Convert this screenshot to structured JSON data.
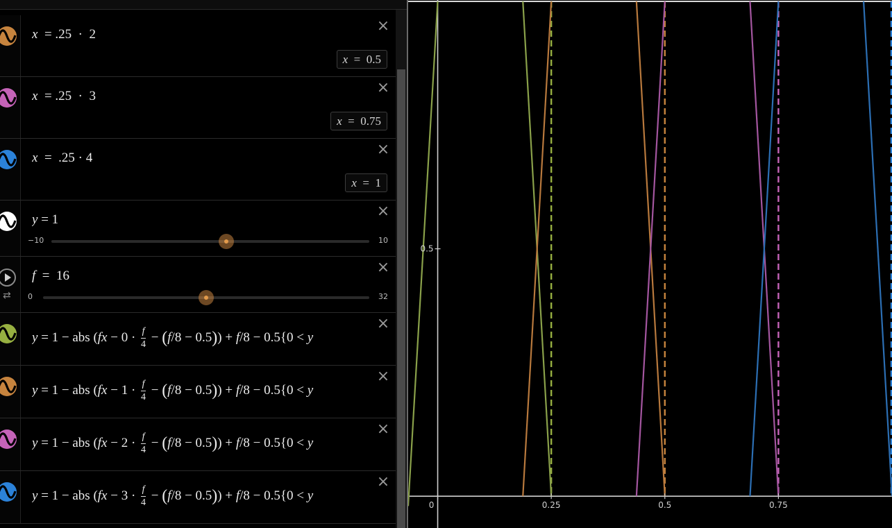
{
  "expressions": [
    {
      "id": "e1",
      "color": "#c7843e",
      "icon": "wave-icon",
      "math_html": "<i>x</i> &nbsp;= .25 &nbsp;· &nbsp;2",
      "result_html": "<i>x</i> &nbsp;= &nbsp;0.5"
    },
    {
      "id": "e2",
      "color": "#c563b8",
      "icon": "wave-icon",
      "math_html": "<i>x</i> &nbsp;= .25 &nbsp;· &nbsp;3",
      "result_html": "<i>x</i> &nbsp;= &nbsp;0.75"
    },
    {
      "id": "e3",
      "color": "#2b82d9",
      "icon": "wave-icon",
      "math_html": "<i>x</i> &nbsp;= &nbsp;.25 · 4",
      "result_html": "<i>x</i> &nbsp;= &nbsp;1"
    },
    {
      "id": "e4",
      "color": "#ffffff",
      "icon": "wave-icon",
      "math_html": "<i>y</i> = 1",
      "slider": {
        "min": "−10",
        "max": "10",
        "value": 1,
        "lo": -10,
        "hi": 10
      }
    },
    {
      "id": "e5",
      "color": "#8a8a8a",
      "icon": "play-icon",
      "math_html": "<i>f</i> &nbsp;= &nbsp;16",
      "slider": {
        "min": "0",
        "max": "32",
        "value": 16,
        "lo": 0,
        "hi": 32
      }
    },
    {
      "id": "e6",
      "color": "#97b041",
      "icon": "wave-icon",
      "k": "0"
    },
    {
      "id": "e7",
      "color": "#c7843e",
      "icon": "wave-icon",
      "k": "1"
    },
    {
      "id": "e8",
      "color": "#c563b8",
      "icon": "wave-icon",
      "k": "2"
    },
    {
      "id": "e9",
      "color": "#2b82d9",
      "icon": "wave-icon",
      "k": "3"
    }
  ],
  "long_expr": {
    "pre": "<i>y</i> = 1 − abs (<i>fx</i> − ",
    "mid": " · ",
    "frac_num": "f",
    "frac_den": "4",
    "post": " − <span class=\"bigp\">(</span><i>f</i>/8 − 0.5<span class=\"bigp\">)</span>) + <i>f</i>/8 − 0.5{0 &lt; <i>y</i>"
  },
  "graph": {
    "x_min": -0.065,
    "x_max": 1.0,
    "y_min": -0.025,
    "y_max": 1.0,
    "tick_labels_x": [
      "0",
      "0.25",
      "0.5",
      "0.75"
    ],
    "tick_values_x": [
      0,
      0.25,
      0.5,
      0.75
    ],
    "tick_label_y": "0.5",
    "tick_value_y": 0.5,
    "axis_color": "#cfcfcf",
    "lines": [
      {
        "color": "#8aa14a",
        "x1": -0.065,
        "y1": -0.02,
        "x2": 0.0,
        "y2": 1.0
      },
      {
        "color": "#8aa14a",
        "x1": 0.1875,
        "y1": 1.0,
        "x2": 0.25,
        "y2": 0.0
      },
      {
        "color": "#b8793d",
        "x1": 0.1875,
        "y1": 0.0,
        "x2": 0.25,
        "y2": 1.0
      },
      {
        "color": "#b8793d",
        "x1": 0.4375,
        "y1": 1.0,
        "x2": 0.5,
        "y2": 0.0
      },
      {
        "color": "#a456a0",
        "x1": 0.4375,
        "y1": 0.0,
        "x2": 0.5,
        "y2": 1.0
      },
      {
        "color": "#a456a0",
        "x1": 0.6875,
        "y1": 1.0,
        "x2": 0.75,
        "y2": 0.0
      },
      {
        "color": "#2c6fb4",
        "x1": 0.6875,
        "y1": 0.0,
        "x2": 0.75,
        "y2": 1.0
      },
      {
        "color": "#2c6fb4",
        "x1": 0.9375,
        "y1": 1.0,
        "x2": 1.0,
        "y2": 0.0
      }
    ],
    "dashed_verticals": [
      {
        "x": 0.25,
        "color": "#97b041"
      },
      {
        "x": 0.5,
        "color": "#c7843e"
      },
      {
        "x": 0.75,
        "color": "#c563b8"
      }
    ]
  }
}
